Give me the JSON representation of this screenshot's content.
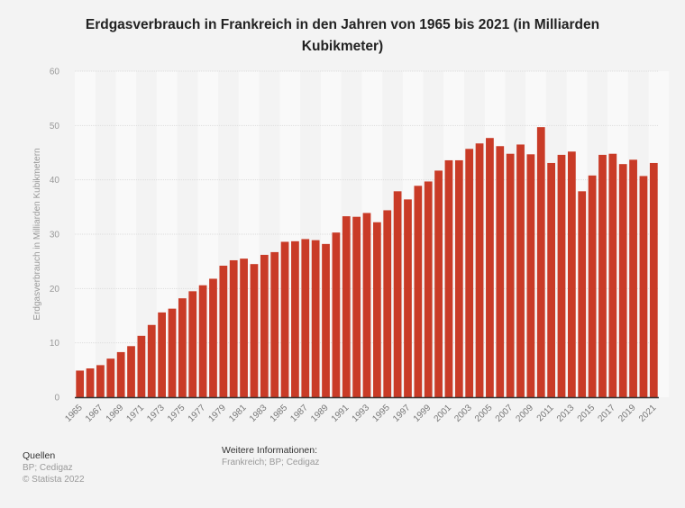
{
  "colors": {
    "bar": "#c93b27",
    "background": "#f3f3f3",
    "band": "#f9f9f9",
    "grid": "#dddddd",
    "baseline": "#333333",
    "tick": "#999999"
  },
  "footer": {
    "sources_heading": "Quellen",
    "sources_text": "BP; Cedigaz",
    "copyright": "© Statista 2022",
    "info_heading": "Weitere Informationen:",
    "info_text": "Frankreich; BP; Cedigaz"
  },
  "chart_data": {
    "type": "bar",
    "title": "Erdgasverbrauch in Frankreich in den Jahren von 1965 bis 2021 (in Milliarden Kubikmeter)",
    "title_lines": [
      "Erdgasverbrauch in Frankreich in den Jahren von 1965 bis 2021 (in Milliarden",
      "Kubikmeter)"
    ],
    "xlabel": "",
    "ylabel": "Erdgasverbrauch in Milliarden Kubikmetern",
    "ylim": [
      0,
      60
    ],
    "yticks": [
      0,
      10,
      20,
      30,
      40,
      50,
      60
    ],
    "grid": true,
    "legend": "none",
    "categories": [
      "1965",
      "1966",
      "1967",
      "1968",
      "1969",
      "1970",
      "1971",
      "1972",
      "1973",
      "1974",
      "1975",
      "1976",
      "1977",
      "1978",
      "1979",
      "1980",
      "1981",
      "1982",
      "1983",
      "1984",
      "1985",
      "1986",
      "1987",
      "1988",
      "1989",
      "1990",
      "1991",
      "1992",
      "1993",
      "1994",
      "1995",
      "1996",
      "1997",
      "1998",
      "1999",
      "2000",
      "2001",
      "2002",
      "2003",
      "2004",
      "2005",
      "2006",
      "2007",
      "2008",
      "2009",
      "2010",
      "2011",
      "2012",
      "2013",
      "2014",
      "2015",
      "2016",
      "2017",
      "2018",
      "2019",
      "2020",
      "2021"
    ],
    "xtick_labels": [
      "1965",
      "1967",
      "1969",
      "1971",
      "1973",
      "1975",
      "1977",
      "1979",
      "1981",
      "1983",
      "1985",
      "1987",
      "1989",
      "1991",
      "1993",
      "1995",
      "1997",
      "1999",
      "2001",
      "2003",
      "2005",
      "2007",
      "2009",
      "2011",
      "2013",
      "2015",
      "2017",
      "2019",
      "2021"
    ],
    "values": [
      4.9,
      5.3,
      5.9,
      7.1,
      8.3,
      9.4,
      11.3,
      13.3,
      15.6,
      16.3,
      18.2,
      19.5,
      20.6,
      21.8,
      24.2,
      25.2,
      25.5,
      24.5,
      26.2,
      26.7,
      28.6,
      28.7,
      29.1,
      28.9,
      28.2,
      30.3,
      33.3,
      33.2,
      33.9,
      32.2,
      34.4,
      37.9,
      36.4,
      38.9,
      39.7,
      41.7,
      43.6,
      43.6,
      45.7,
      46.7,
      47.7,
      46.2,
      44.8,
      46.5,
      44.7,
      49.7,
      43.1,
      44.6,
      45.2,
      37.9,
      40.8,
      44.6,
      44.8,
      42.9,
      43.7,
      40.7,
      43.1
    ]
  }
}
